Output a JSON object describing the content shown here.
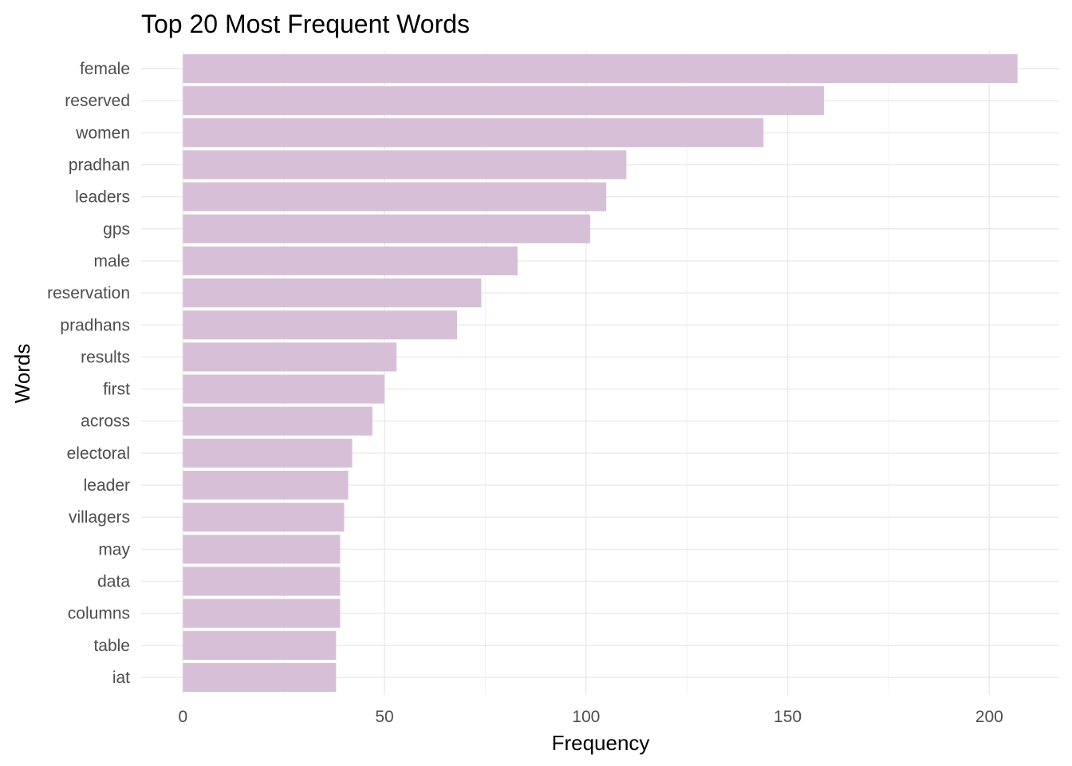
{
  "chart_data": {
    "type": "bar",
    "orientation": "horizontal",
    "title": "Top 20 Most Frequent Words",
    "xlabel": "Frequency",
    "ylabel": "Words",
    "categories": [
      "female",
      "reserved",
      "women",
      "pradhan",
      "leaders",
      "gps",
      "male",
      "reservation",
      "pradhans",
      "results",
      "first",
      "across",
      "electoral",
      "leader",
      "villagers",
      "may",
      "data",
      "columns",
      "table",
      "iat"
    ],
    "values": [
      207,
      159,
      144,
      110,
      105,
      101,
      83,
      74,
      68,
      53,
      50,
      47,
      42,
      41,
      40,
      39,
      39,
      39,
      38,
      38
    ],
    "xlim": [
      -10.35,
      217.35
    ],
    "xticks": [
      "0",
      "50",
      "100",
      "150",
      "200"
    ],
    "grid": true,
    "legend": "none",
    "bar_color": "#d8bfd8"
  }
}
